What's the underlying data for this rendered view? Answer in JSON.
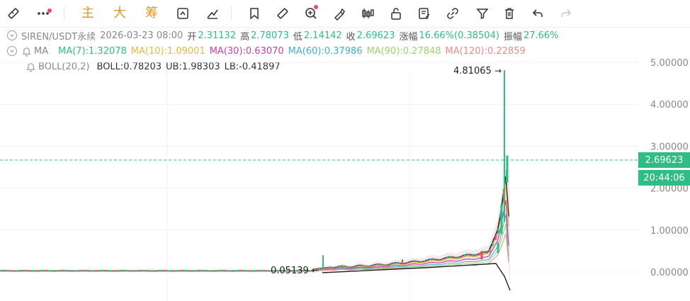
{
  "toolbar": {
    "btn_main": "主",
    "btn_big": "大",
    "btn_chip": "筹"
  },
  "header": {
    "symbol": "SIREN/USDT永续",
    "datetime": "2026-03-23 08:00",
    "open_label": "开",
    "open": "2.31132",
    "high_label": "高",
    "high": "2.78073",
    "low_label": "低",
    "low": "2.14142",
    "close_label": "收",
    "close": "2.69623",
    "change_label": "涨幅",
    "change": "16.66%(0.38504)",
    "amplitude_label": "振幅",
    "amplitude": "27.66%"
  },
  "ma": {
    "label": "MA",
    "ma7": "MA(7):1.32078",
    "ma10": "MA(10):1.09001",
    "ma30": "MA(30):0.63070",
    "ma60": "MA(60):0.37986",
    "ma90": "MA(90):0.27848",
    "ma120": "MA(120):0.22859"
  },
  "boll": {
    "label": "BOLL(20,2)",
    "boll": "BOLL:0.78203",
    "ub": "UB:1.98303",
    "lb": "LB:-0.41897"
  },
  "axis": {
    "ticks": [
      "5.00000",
      "4.00000",
      "3.00000",
      "2.00000",
      "1.00000",
      "0.00000"
    ]
  },
  "annotations": {
    "high_mark": "4.81065",
    "low_mark": "0.05139"
  },
  "current": {
    "price": "2.69623",
    "countdown": "20:44:06"
  },
  "colors": {
    "up": "#2ebd85",
    "down": "#f6465d",
    "accent": "#d49a2a",
    "ma7": "#222222",
    "ma10": "#e8b93e",
    "ma30": "#cf3cb0",
    "ma60": "#3fb1c7",
    "ma90": "#9bd36b",
    "ma120": "#f08a8a"
  }
}
